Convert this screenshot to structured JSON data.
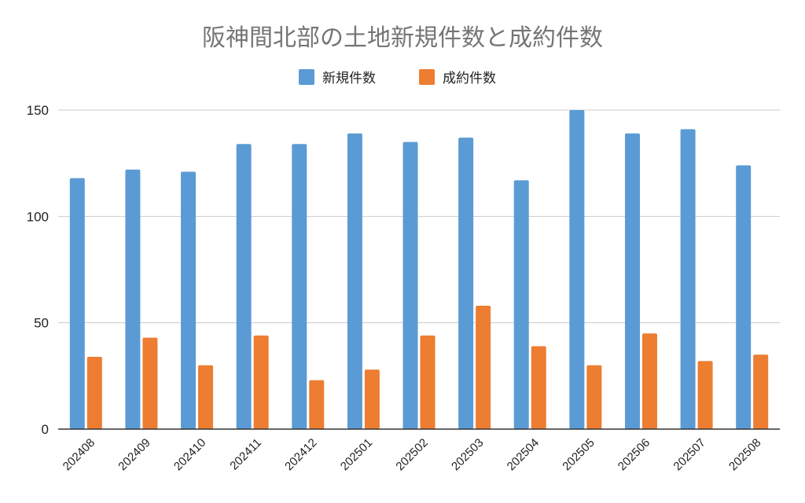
{
  "chart_data": {
    "type": "bar",
    "title": "阪神間北部の土地新規件数と成約件数",
    "xlabel": "",
    "ylabel": "",
    "ylim": [
      0,
      150
    ],
    "yticks": [
      0,
      50,
      100,
      150
    ],
    "grid": true,
    "legend_position": "top",
    "categories": [
      "202408",
      "202409",
      "202410",
      "202411",
      "202412",
      "202501",
      "202502",
      "202503",
      "202504",
      "202505",
      "202506",
      "202507",
      "202508"
    ],
    "series": [
      {
        "name": "新規件数",
        "color": "#5b9bd5",
        "values": [
          118,
          122,
          121,
          134,
          134,
          139,
          135,
          137,
          117,
          150,
          139,
          141,
          124
        ]
      },
      {
        "name": "成約件数",
        "color": "#ed7d31",
        "values": [
          34,
          43,
          30,
          44,
          23,
          28,
          44,
          58,
          39,
          30,
          45,
          32,
          35
        ]
      }
    ]
  }
}
